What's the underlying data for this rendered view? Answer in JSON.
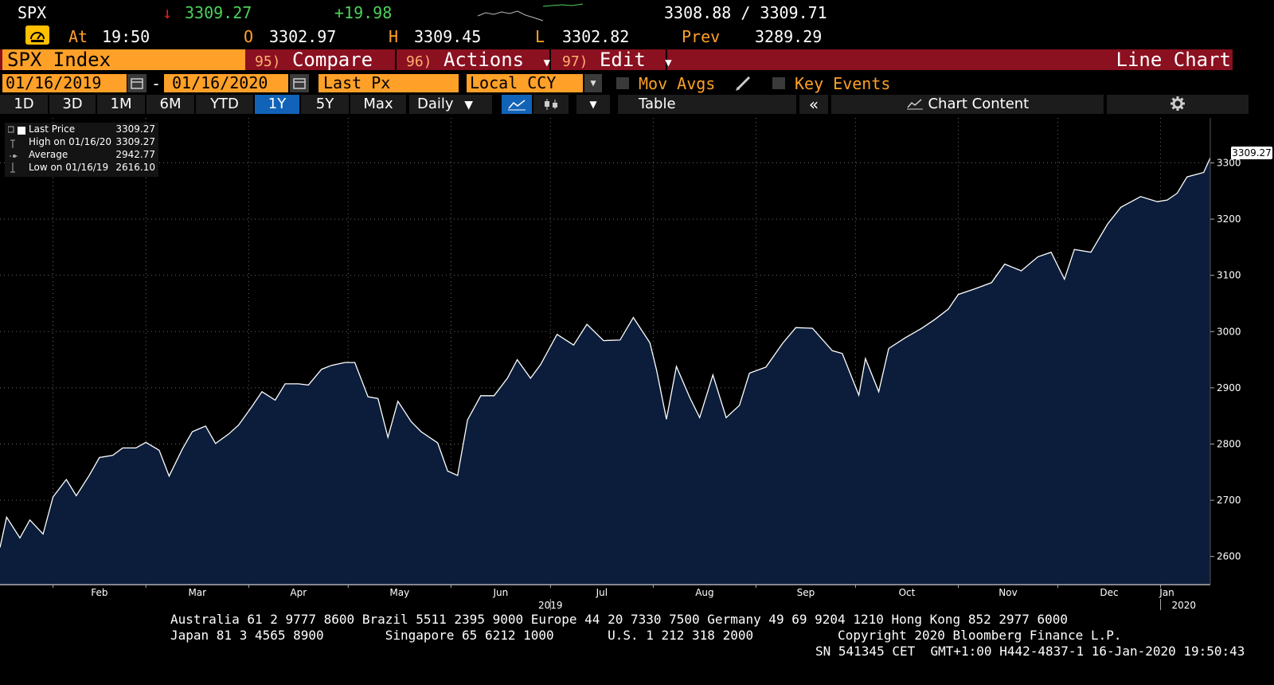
{
  "header": {
    "ticker": "SPX",
    "direction": "↓",
    "last": "3309.27",
    "change": "+19.98",
    "bid_ask": "3308.88 / 3309.71",
    "time_label": "At",
    "time": "19:50",
    "open_label": "O",
    "open": "3302.97",
    "high_label": "H",
    "high": "3309.45",
    "low_label": "L",
    "low": "3302.82",
    "prev_label": "Prev",
    "prev": "3289.29"
  },
  "toolbar": {
    "security": "SPX Index",
    "compare_num": "95)",
    "compare": "Compare",
    "actions_num": "96)",
    "actions": "Actions",
    "edit_num": "97)",
    "edit": "Edit",
    "chart_type": "Line Chart",
    "start_date": "01/16/2019",
    "end_date": "01/16/2020",
    "date_sep": "-",
    "field": "Last Px",
    "currency": "Local CCY",
    "mov_avgs": "Mov Avgs",
    "key_events": "Key Events",
    "ranges": [
      "1D",
      "3D",
      "1M",
      "6M",
      "YTD",
      "1Y",
      "5Y",
      "Max"
    ],
    "selected_range": "1Y",
    "periodicity": "Daily",
    "table": "Table",
    "chart_content": "Chart Content"
  },
  "legend": {
    "rows": [
      {
        "label": "Last Price",
        "value": "3309.27"
      },
      {
        "label": "High on 01/16/20",
        "value": "3309.27"
      },
      {
        "label": "Average",
        "value": "2942.77"
      },
      {
        "label": "Low on 01/16/19",
        "value": "2616.10"
      }
    ]
  },
  "last_value_tag": "3309.27",
  "chart_data": {
    "type": "area",
    "ylim": [
      2550,
      3380
    ],
    "yticks": [
      2600,
      2700,
      2800,
      2900,
      3000,
      3100,
      3200,
      3300
    ],
    "xlim": [
      "2019-01-16",
      "2020-01-16"
    ],
    "x_month_ticks": [
      "2019-02-01",
      "2019-03-01",
      "2019-04-01",
      "2019-05-01",
      "2019-06-01",
      "2019-07-01",
      "2019-08-01",
      "2019-09-01",
      "2019-10-01",
      "2019-11-01",
      "2019-12-01",
      "2020-01-01"
    ],
    "x_month_labels": [
      "Feb",
      "Mar",
      "Apr",
      "May",
      "Jun",
      "Jul",
      "Aug",
      "Sep",
      "Oct",
      "Nov",
      "Dec",
      "Jan"
    ],
    "year_labels": [
      {
        "label": "2019",
        "date": "2019-07-01"
      },
      {
        "label": "2020",
        "date": "2020-01-01"
      }
    ],
    "series": [
      {
        "x": [
          "2019-01-16",
          "2019-01-18",
          "2019-01-22",
          "2019-01-25",
          "2019-01-29",
          "2019-02-01",
          "2019-02-05",
          "2019-02-08",
          "2019-02-12",
          "2019-02-15",
          "2019-02-19",
          "2019-02-22",
          "2019-02-26",
          "2019-03-01",
          "2019-03-05",
          "2019-03-08",
          "2019-03-12",
          "2019-03-15",
          "2019-03-19",
          "2019-03-22",
          "2019-03-26",
          "2019-03-29",
          "2019-04-02",
          "2019-04-05",
          "2019-04-09",
          "2019-04-12",
          "2019-04-16",
          "2019-04-19",
          "2019-04-23",
          "2019-04-26",
          "2019-04-30",
          "2019-05-03",
          "2019-05-07",
          "2019-05-10",
          "2019-05-13",
          "2019-05-16",
          "2019-05-20",
          "2019-05-23",
          "2019-05-28",
          "2019-05-31",
          "2019-06-03",
          "2019-06-06",
          "2019-06-10",
          "2019-06-14",
          "2019-06-18",
          "2019-06-21",
          "2019-06-25",
          "2019-06-28",
          "2019-07-03",
          "2019-07-08",
          "2019-07-12",
          "2019-07-17",
          "2019-07-22",
          "2019-07-26",
          "2019-07-31",
          "2019-08-02",
          "2019-08-05",
          "2019-08-08",
          "2019-08-12",
          "2019-08-15",
          "2019-08-19",
          "2019-08-23",
          "2019-08-27",
          "2019-08-30",
          "2019-09-04",
          "2019-09-09",
          "2019-09-13",
          "2019-09-18",
          "2019-09-24",
          "2019-09-27",
          "2019-10-02",
          "2019-10-04",
          "2019-10-08",
          "2019-10-11",
          "2019-10-16",
          "2019-10-21",
          "2019-10-25",
          "2019-10-29",
          "2019-11-01",
          "2019-11-06",
          "2019-11-11",
          "2019-11-15",
          "2019-11-20",
          "2019-11-25",
          "2019-11-29",
          "2019-12-03",
          "2019-12-06",
          "2019-12-11",
          "2019-12-16",
          "2019-12-20",
          "2019-12-26",
          "2019-12-31",
          "2020-01-03",
          "2020-01-06",
          "2020-01-09",
          "2020-01-14",
          "2020-01-16"
        ],
        "y": [
          2616,
          2670,
          2633,
          2665,
          2640,
          2706,
          2737,
          2708,
          2745,
          2776,
          2780,
          2793,
          2793,
          2803,
          2789,
          2743,
          2791,
          2822,
          2832,
          2801,
          2818,
          2834,
          2867,
          2893,
          2878,
          2907,
          2907,
          2905,
          2933,
          2940,
          2945,
          2945,
          2884,
          2881,
          2812,
          2876,
          2840,
          2822,
          2802,
          2752,
          2744,
          2843,
          2886,
          2886,
          2917,
          2950,
          2917,
          2941,
          2995,
          2976,
          3013,
          2984,
          2985,
          3025,
          2980,
          2932,
          2844,
          2938,
          2883,
          2847,
          2923,
          2847,
          2869,
          2926,
          2937,
          2979,
          3007,
          3006,
          2966,
          2961,
          2887,
          2952,
          2893,
          2970,
          2989,
          3006,
          3022,
          3040,
          3066,
          3076,
          3087,
          3120,
          3108,
          3133,
          3141,
          3093,
          3146,
          3141,
          3191,
          3221,
          3240,
          3231,
          3234,
          3246,
          3275,
          3283,
          3309
        ]
      }
    ]
  },
  "footer": {
    "line1": "Australia 61 2 9777 8600 Brazil 5511 2395 9000 Europe 44 20 7330 7500 Germany 49 69 9204 1210 Hong Kong 852 2977 6000",
    "line2": "Japan 81 3 4565 8900        Singapore 65 6212 1000       U.S. 1 212 318 2000           Copyright 2020 Bloomberg Finance L.P.",
    "line3": "SN 541345 CET  GMT+1:00 H442-4837-1 16-Jan-2020 19:50:43"
  },
  "colors": {
    "accent_orange": "#ffa028",
    "toolbar_red": "#8b1020",
    "selected_blue": "#1163b8",
    "area_fill": "#0b1d3a",
    "up_green": "#4ad25a",
    "down_red": "#e02020"
  }
}
